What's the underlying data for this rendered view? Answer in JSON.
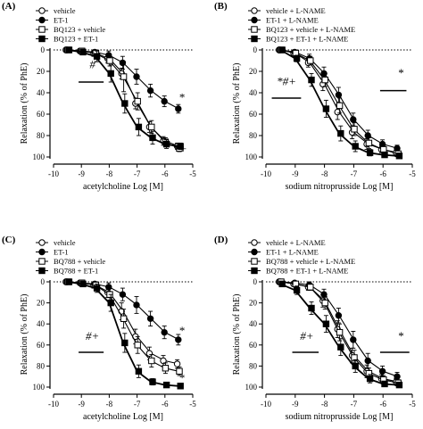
{
  "chart_data": [
    {
      "panel": "(A)",
      "type": "line",
      "xlabel": "acetylcholine Log [M]",
      "ylabel": "Relaxation (% of PhE)",
      "xlim": [
        -10,
        -5
      ],
      "ylim": [
        0,
        100
      ],
      "y_inverted": true,
      "x_ticks": [
        "-10",
        "-9",
        "-8",
        "-7",
        "-6",
        "-5"
      ],
      "y_ticks": [
        "0",
        "20",
        "40",
        "60",
        "80",
        "100"
      ],
      "legend_position": "top-left",
      "x": [
        -9.5,
        -9.0,
        -8.5,
        -8.0,
        -7.5,
        -7.0,
        -6.5,
        -6.0,
        -5.5
      ],
      "series": [
        {
          "name": "vehicle",
          "marker": "open-circle",
          "fill": "#ffffff",
          "values": [
            0,
            1,
            3,
            8,
            22,
            50,
            72,
            85,
            90
          ],
          "errors": [
            1,
            2,
            3,
            4,
            5,
            5,
            5,
            4,
            3
          ]
        },
        {
          "name": "ET-1",
          "marker": "filled-circle",
          "fill": "#000000",
          "values": [
            0,
            1,
            2,
            5,
            12,
            25,
            38,
            48,
            55
          ],
          "errors": [
            1,
            2,
            3,
            4,
            6,
            7,
            6,
            5,
            4
          ]
        },
        {
          "name": "BQ123 + vehicle",
          "marker": "open-square",
          "fill": "#ffffff",
          "values": [
            0,
            1,
            3,
            10,
            25,
            48,
            72,
            86,
            92
          ],
          "errors": [
            1,
            2,
            3,
            5,
            14,
            8,
            6,
            4,
            3
          ]
        },
        {
          "name": "BQ123 + ET-1",
          "marker": "filled-square",
          "fill": "#000000",
          "values": [
            0,
            2,
            6,
            22,
            50,
            72,
            82,
            88,
            90
          ],
          "errors": [
            1,
            2,
            5,
            8,
            9,
            8,
            6,
            4,
            3
          ]
        }
      ],
      "annotations": [
        {
          "text": "#",
          "x": -8.6,
          "y": 17
        },
        {
          "text": "*",
          "x": -5.4,
          "y": 48
        },
        {
          "text": "*+",
          "x": -5.45,
          "y": 96
        }
      ]
    },
    {
      "panel": "(B)",
      "type": "line",
      "xlabel": "sodium nitroprusside Log [M]",
      "ylabel": "Relaxation (% of PhE)",
      "xlim": [
        -10,
        -5
      ],
      "ylim": [
        0,
        100
      ],
      "y_inverted": true,
      "x_ticks": [
        "-10",
        "-9",
        "-8",
        "-7",
        "-6",
        "-5"
      ],
      "y_ticks": [
        "0",
        "20",
        "40",
        "60",
        "80",
        "100"
      ],
      "legend_position": "top-left",
      "x": [
        -9.5,
        -9.0,
        -8.5,
        -8.0,
        -7.5,
        -7.0,
        -6.5,
        -6.0,
        -5.5
      ],
      "series": [
        {
          "name": "vehicle + L-NAME",
          "marker": "open-circle",
          "fill": "#ffffff",
          "values": [
            0,
            3,
            12,
            32,
            58,
            77,
            88,
            93,
            96
          ],
          "errors": [
            1,
            2,
            4,
            6,
            7,
            6,
            5,
            3,
            2
          ]
        },
        {
          "name": "ET-1 + L-NAME",
          "marker": "filled-circle",
          "fill": "#000000",
          "values": [
            0,
            2,
            8,
            22,
            42,
            65,
            80,
            88,
            92
          ],
          "errors": [
            1,
            2,
            4,
            6,
            7,
            6,
            5,
            4,
            3
          ]
        },
        {
          "name": "BQ123 + vehicle + L-NAME",
          "marker": "open-square",
          "fill": "#ffffff",
          "values": [
            0,
            3,
            10,
            28,
            52,
            74,
            87,
            93,
            97
          ],
          "errors": [
            1,
            2,
            4,
            6,
            7,
            6,
            5,
            3,
            2
          ]
        },
        {
          "name": "BQ123 + ET-1 + L-NAME",
          "marker": "filled-square",
          "fill": "#000000",
          "values": [
            0,
            8,
            28,
            55,
            78,
            90,
            96,
            98,
            99
          ],
          "errors": [
            1,
            3,
            6,
            8,
            7,
            5,
            3,
            2,
            1
          ]
        }
      ],
      "annotations": [
        {
          "text": "*#+",
          "x": -9.3,
          "y": 33
        },
        {
          "text": "*",
          "x": -5.4,
          "y": 25
        }
      ]
    },
    {
      "panel": "(C)",
      "type": "line",
      "xlabel": "acetylcholine Log [M]",
      "ylabel": "Relaxation (% of PhE)",
      "xlim": [
        -10,
        -5
      ],
      "ylim": [
        0,
        100
      ],
      "y_inverted": true,
      "x_ticks": [
        "-10",
        "-9",
        "-8",
        "-7",
        "-6",
        "-5"
      ],
      "y_ticks": [
        "0",
        "20",
        "40",
        "60",
        "80",
        "100"
      ],
      "legend_position": "top-left",
      "x": [
        -9.5,
        -9.0,
        -8.5,
        -8.0,
        -7.5,
        -7.0,
        -6.5,
        -6.0,
        -5.5
      ],
      "series": [
        {
          "name": "vehicle",
          "marker": "open-circle",
          "fill": "#ffffff",
          "values": [
            0,
            1,
            3,
            10,
            28,
            52,
            68,
            75,
            78
          ],
          "errors": [
            1,
            2,
            3,
            5,
            8,
            7,
            6,
            5,
            4
          ]
        },
        {
          "name": "ET-1",
          "marker": "filled-circle",
          "fill": "#000000",
          "values": [
            0,
            1,
            2,
            5,
            12,
            22,
            35,
            48,
            55
          ],
          "errors": [
            1,
            2,
            3,
            4,
            6,
            8,
            7,
            6,
            5
          ]
        },
        {
          "name": "BQ788 + vehicle",
          "marker": "open-square",
          "fill": "#ffffff",
          "values": [
            0,
            1,
            3,
            12,
            35,
            60,
            75,
            82,
            85
          ],
          "errors": [
            1,
            2,
            4,
            6,
            9,
            8,
            6,
            5,
            4
          ]
        },
        {
          "name": "BQ788 + ET-1",
          "marker": "filled-square",
          "fill": "#000000",
          "values": [
            0,
            2,
            6,
            20,
            58,
            85,
            95,
            98,
            99
          ],
          "errors": [
            1,
            2,
            4,
            8,
            9,
            6,
            3,
            2,
            1
          ]
        }
      ],
      "annotations": [
        {
          "text": "#+",
          "x": -8.6,
          "y": 55
        },
        {
          "text": "*",
          "x": -5.4,
          "y": 50
        },
        {
          "text": "*",
          "x": -5.4,
          "y": 95
        }
      ]
    },
    {
      "panel": "(D)",
      "type": "line",
      "xlabel": "sodium nitroprusside Log [M]",
      "ylabel": "Relaxation (% of PhE)",
      "xlim": [
        -10,
        -5
      ],
      "ylim": [
        0,
        100
      ],
      "y_inverted": true,
      "x_ticks": [
        "-10",
        "-9",
        "-8",
        "-7",
        "-6",
        "-5"
      ],
      "y_ticks": [
        "0",
        "20",
        "40",
        "60",
        "80",
        "100"
      ],
      "legend_position": "top-left",
      "x": [
        -9.5,
        -9.0,
        -8.5,
        -8.0,
        -7.5,
        -7.0,
        -6.5,
        -6.0,
        -5.5
      ],
      "series": [
        {
          "name": "vehicle + L-NAME",
          "marker": "open-circle",
          "fill": "#ffffff",
          "values": [
            0,
            2,
            5,
            18,
            45,
            70,
            85,
            92,
            95
          ],
          "errors": [
            1,
            2,
            3,
            6,
            8,
            7,
            6,
            4,
            3
          ]
        },
        {
          "name": "ET-1 + L-NAME",
          "marker": "filled-circle",
          "fill": "#000000",
          "values": [
            0,
            1,
            3,
            12,
            32,
            55,
            75,
            85,
            90
          ],
          "errors": [
            1,
            2,
            3,
            5,
            7,
            8,
            7,
            5,
            4
          ]
        },
        {
          "name": "BQ788 + vehicle + L-NAME",
          "marker": "open-square",
          "fill": "#ffffff",
          "values": [
            0,
            2,
            5,
            20,
            48,
            72,
            87,
            93,
            96
          ],
          "errors": [
            1,
            2,
            3,
            6,
            8,
            7,
            5,
            4,
            3
          ]
        },
        {
          "name": "BQ788 + ET-1 + L-NAME",
          "marker": "filled-square",
          "fill": "#000000",
          "values": [
            2,
            8,
            25,
            40,
            62,
            80,
            92,
            97,
            98
          ],
          "errors": [
            2,
            4,
            6,
            8,
            8,
            6,
            4,
            2,
            2
          ]
        }
      ],
      "annotations": [
        {
          "text": "#+",
          "x": -8.6,
          "y": 55
        },
        {
          "text": "*",
          "x": -5.4,
          "y": 55
        }
      ]
    }
  ]
}
